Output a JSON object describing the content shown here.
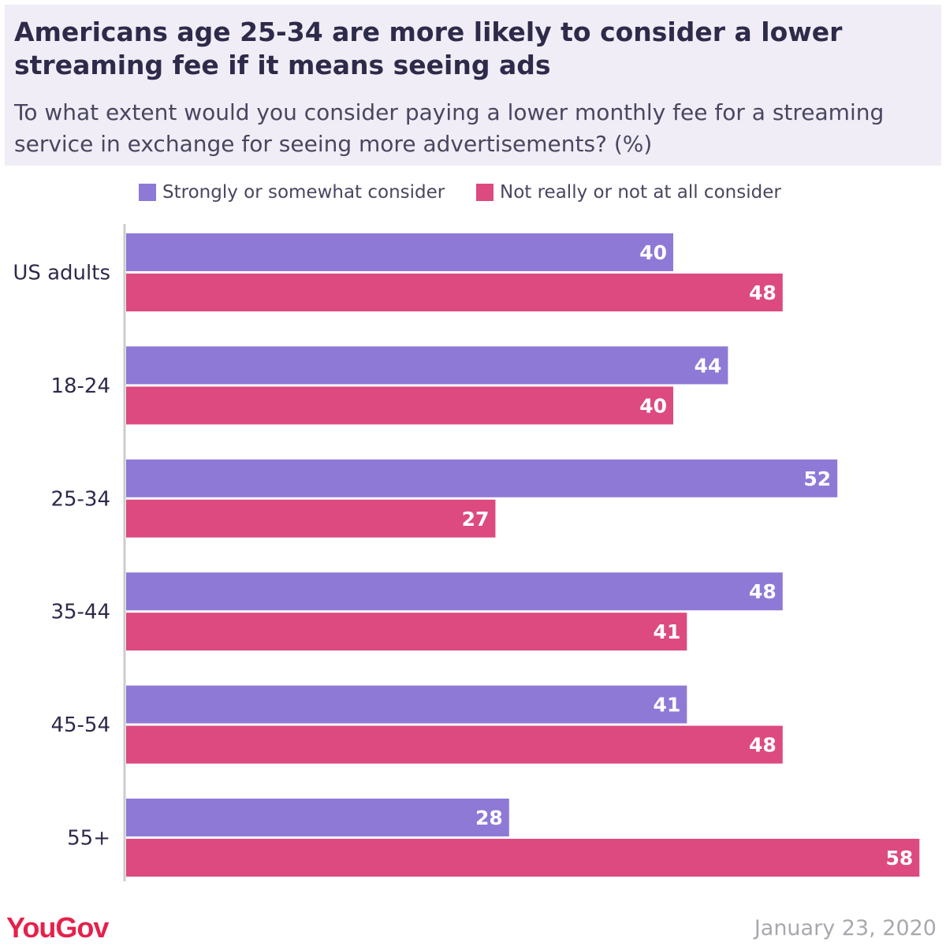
{
  "header": {
    "title": "Americans age 25-34 are more likely to consider a lower streaming fee if it means seeing ads",
    "subtitle": "To what extent would you consider paying a lower monthly fee for a streaming service in exchange for seeing more advertisements? (%)"
  },
  "footer": {
    "logo": "YouGov",
    "date": "January 23, 2020"
  },
  "colors": {
    "series_consider": "#8e79d6",
    "series_not_consider": "#dc4a80",
    "header_bg": "#f0edf6",
    "axis": "#cccccc"
  },
  "chart_data": {
    "type": "bar",
    "orientation": "horizontal",
    "categories": [
      "US adults",
      "18-24",
      "25-34",
      "35-44",
      "45-54",
      "55+"
    ],
    "series": [
      {
        "name": "Strongly or somewhat consider",
        "values": [
          40,
          44,
          52,
          48,
          41,
          28
        ]
      },
      {
        "name": "Not really or not at all consider",
        "values": [
          48,
          40,
          27,
          41,
          48,
          58
        ]
      }
    ],
    "legend_position": "top",
    "grid": false,
    "data_labels": true
  }
}
